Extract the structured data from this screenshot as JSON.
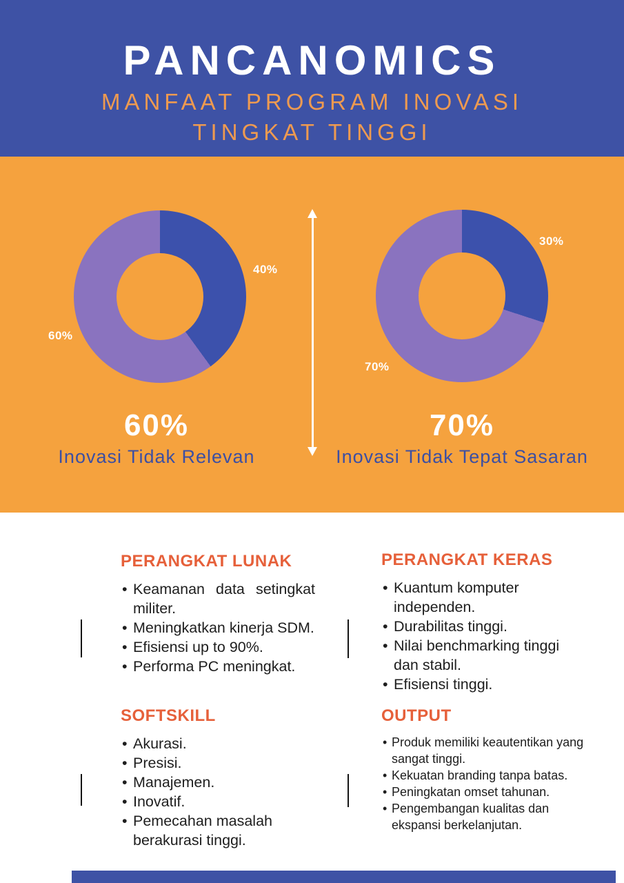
{
  "header": {
    "title": "PANCANOMICS",
    "subtitle_line1": "MANFAAT PROGRAM INOVASI",
    "subtitle_line2": "TINGKAT TINGGI"
  },
  "colors": {
    "header_blue": "#3E52A5",
    "orange": "#F5A23E",
    "donut_blue": "#3C51AC",
    "donut_purple": "#8A73BF",
    "heading_orange": "#E6603A",
    "subtitle_orange": "#EE9A50",
    "caption_blue": "#3C4FA3",
    "text_dark": "#1E1E1E"
  },
  "chart_data": [
    {
      "type": "pie",
      "style": "donut",
      "title": "60%",
      "caption": "Inovasi Tidak Relevan",
      "start_angle_deg": 0,
      "slices": [
        {
          "label": "40%",
          "value": 40,
          "color": "#3C51AC"
        },
        {
          "label": "60%",
          "value": 60,
          "color": "#8A73BF"
        }
      ]
    },
    {
      "type": "pie",
      "style": "donut",
      "title": "70%",
      "caption": "Inovasi Tidak Tepat Sasaran",
      "start_angle_deg": 0,
      "slices": [
        {
          "label": "30%",
          "value": 30,
          "color": "#3C51AC"
        },
        {
          "label": "70%",
          "value": 70,
          "color": "#8A73BF"
        }
      ]
    }
  ],
  "sections": [
    {
      "heading": "PERANGKAT LUNAK",
      "items": [
        "Keamanan data setingkat militer.",
        "Meningkatkan kinerja SDM.",
        "Efisiensi up to 90%.",
        "Performa PC meningkat."
      ]
    },
    {
      "heading": "PERANGKAT KERAS",
      "items": [
        "Kuantum komputer independen.",
        "Durabilitas tinggi.",
        "Nilai benchmarking tinggi dan stabil.",
        "Efisiensi tinggi."
      ]
    },
    {
      "heading": "SOFTSKILL",
      "items": [
        "Akurasi.",
        "Presisi.",
        "Manajemen.",
        "Inovatif.",
        "Pemecahan masalah berakurasi tinggi."
      ]
    },
    {
      "heading": "OUTPUT",
      "items": [
        "Produk memiliki keautentikan yang sangat tinggi.",
        "Kekuatan branding tanpa batas.",
        "Peningkatan omset tahunan.",
        "Pengembangan kualitas dan ekspansi berkelanjutan."
      ]
    }
  ]
}
